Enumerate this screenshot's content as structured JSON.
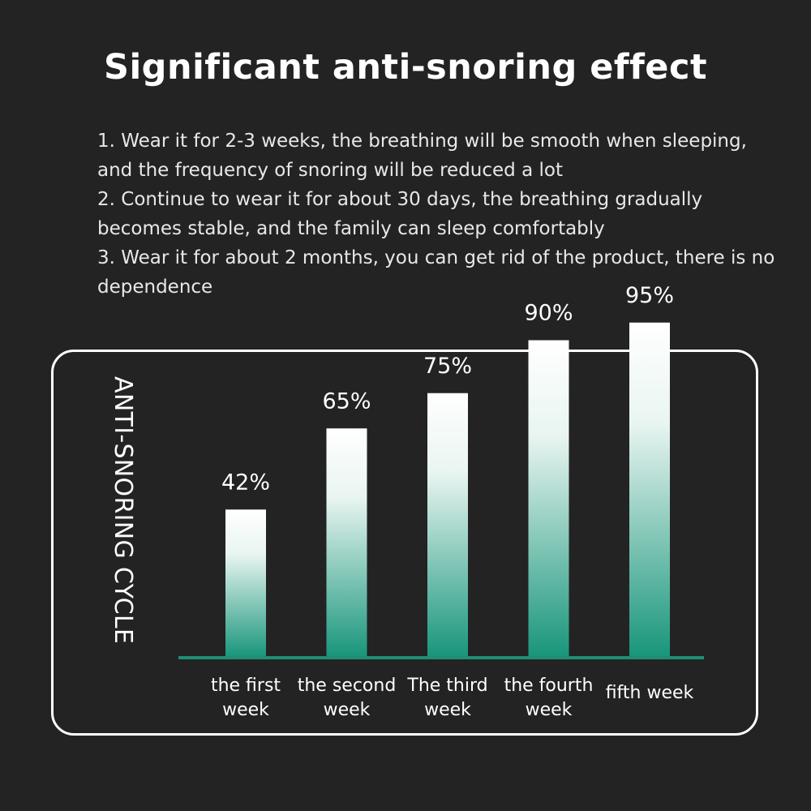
{
  "header": {
    "title": "Significant anti-snoring effect"
  },
  "notes": [
    "1. Wear it for 2-3 weeks, the breathing will be smooth when sleeping, and the frequency of snoring will be reduced a lot",
    "2. Continue to wear it for about 30 days, the breathing gradually becomes stable, and the family can sleep comfortably",
    "3. Wear it for about 2 months, you can get rid of the product, there is no dependence"
  ],
  "chart_data": {
    "type": "bar",
    "ylabel": "ANTI-SNORING CYCLE",
    "categories": [
      [
        "the first",
        "week"
      ],
      [
        "the second",
        "week"
      ],
      [
        "The third",
        "week"
      ],
      [
        "the fourth",
        "week"
      ],
      [
        "fifth week"
      ]
    ],
    "values": [
      42,
      65,
      75,
      90,
      95
    ],
    "value_labels": [
      "42%",
      "65%",
      "75%",
      "90%",
      "95%"
    ],
    "ylim": [
      0,
      100
    ],
    "grid": false,
    "colors": {
      "bar_top": "#ffffff",
      "bar_bottom": "#17957a",
      "baseline": "#1f8e74",
      "text": "#ffffff"
    }
  }
}
